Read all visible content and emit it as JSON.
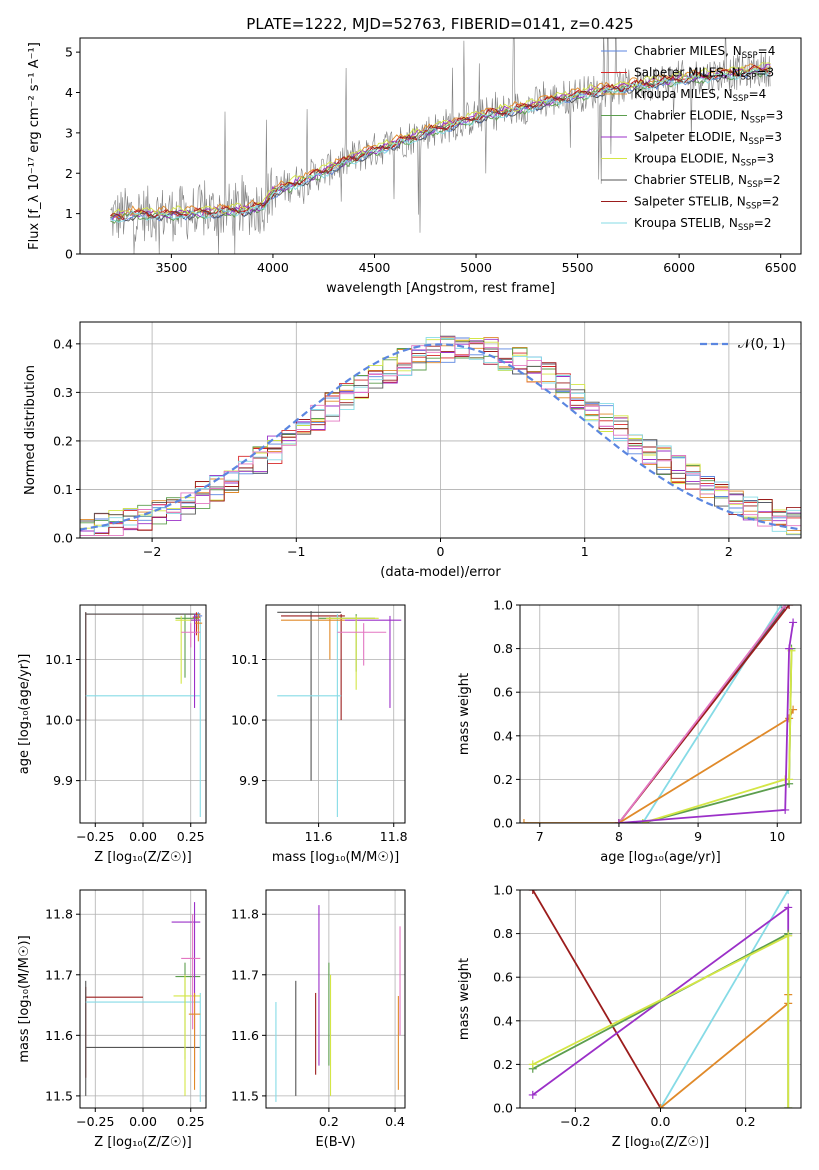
{
  "title": "PLATE=1222, MJD=52763, FIBERID=0141, z=0.425",
  "colors": {
    "chabrier_miles": "#5b86e0",
    "salpeter_miles": "#d62728",
    "kroupa_miles": "#e08a2a",
    "chabrier_elodie": "#5c9e4e",
    "salpeter_elodie": "#9b30c8",
    "kroupa_elodie": "#d4e646",
    "chabrier_stelib": "#555555",
    "salpeter_stelib": "#9b1c1c",
    "kroupa_stelib": "#86dbe6",
    "pink": "#e377c2",
    "gaussian": "#5b86e0"
  },
  "chart_data": [
    {
      "id": "spectrum",
      "type": "line",
      "xlabel": "wavelength [Angstrom, rest frame]",
      "ylabel": "Flux [f_λ 10⁻¹⁷ erg cm⁻² s⁻¹ A⁻¹]",
      "xlim": [
        3050,
        6600
      ],
      "ylim": [
        0,
        5.35
      ],
      "xticks": [
        3500,
        4000,
        4500,
        5000,
        5500,
        6000,
        6500
      ],
      "yticks": [
        0,
        1,
        2,
        3,
        4,
        5
      ],
      "legend_position": "top-right",
      "legend": [
        {
          "label": "Chabrier MILES, N",
          "sub": "SSP",
          "suffix": "=4",
          "color": "chabrier_miles"
        },
        {
          "label": "Salpeter MILES, N",
          "sub": "SSP",
          "suffix": "=3",
          "color": "salpeter_miles"
        },
        {
          "label": "Kroupa MILES, N",
          "sub": "SSP",
          "suffix": "=4",
          "color": "kroupa_miles"
        },
        {
          "label": "Chabrier ELODIE, N",
          "sub": "SSP",
          "suffix": "=3",
          "color": "chabrier_elodie"
        },
        {
          "label": "Salpeter ELODIE, N",
          "sub": "SSP",
          "suffix": "=3",
          "color": "salpeter_elodie"
        },
        {
          "label": "Kroupa ELODIE, N",
          "sub": "SSP",
          "suffix": "=3",
          "color": "kroupa_elodie"
        },
        {
          "label": "Chabrier STELIB, N",
          "sub": "SSP",
          "suffix": "=2",
          "color": "chabrier_stelib"
        },
        {
          "label": "Salpeter STELIB, N",
          "sub": "SSP",
          "suffix": "=2",
          "color": "salpeter_stelib"
        },
        {
          "label": "Kroupa STELIB, N",
          "sub": "SSP",
          "suffix": "=2",
          "color": "kroupa_stelib"
        }
      ],
      "continuum": [
        [
          3200,
          0.9
        ],
        [
          3300,
          1.0
        ],
        [
          3500,
          1.0
        ],
        [
          3700,
          1.05
        ],
        [
          3850,
          1.1
        ],
        [
          3950,
          1.2
        ],
        [
          4000,
          1.55
        ],
        [
          4200,
          1.95
        ],
        [
          4400,
          2.4
        ],
        [
          4600,
          2.75
        ],
        [
          4800,
          3.1
        ],
        [
          5000,
          3.4
        ],
        [
          5200,
          3.6
        ],
        [
          5400,
          3.85
        ],
        [
          5600,
          4.05
        ],
        [
          5800,
          4.2
        ],
        [
          6000,
          4.35
        ],
        [
          6200,
          4.45
        ],
        [
          6450,
          4.6
        ]
      ],
      "data_range": [
        3200,
        6450
      ]
    },
    {
      "id": "residuals",
      "type": "histogram",
      "xlabel": "(data-model)/error",
      "ylabel": "Normed distribution",
      "xlim": [
        -2.5,
        2.5
      ],
      "ylim": [
        0,
        0.445
      ],
      "xticks": [
        -2,
        -1,
        0,
        1,
        2
      ],
      "yticks": [
        0,
        0.1,
        0.2,
        0.3,
        0.4
      ],
      "legend": {
        "label": "𝒩(0, 1)",
        "position": "top-right"
      },
      "bin_width": 0.1,
      "n_bins": 50
    },
    {
      "id": "age_vs_Z",
      "type": "errorbar",
      "xlabel": "Z [log₁₀(Z/Z☉)]",
      "ylabel": "age  [log₁₀(age/yr)]",
      "xlim": [
        -0.33,
        0.33
      ],
      "ylim": [
        9.83,
        10.19
      ],
      "xticks": [
        -0.25,
        0.0,
        0.25
      ],
      "yticks": [
        9.9,
        10.0,
        10.1
      ],
      "points": [
        {
          "color": "salpeter_stelib",
          "x": -0.3,
          "xlo": -0.3,
          "xhi": 0.3,
          "y": 10.175,
          "ylo": 10.0,
          "yhi": 10.178
        },
        {
          "color": "chabrier_stelib",
          "x": -0.3,
          "xlo": -0.3,
          "xhi": 0.3,
          "y": 10.175,
          "ylo": 9.9,
          "yhi": 10.178
        },
        {
          "color": "kroupa_stelib",
          "x": 0.3,
          "xlo": -0.3,
          "xhi": 0.3,
          "y": 10.04,
          "ylo": 9.84,
          "yhi": 10.17
        },
        {
          "color": "salpeter_miles",
          "x": 0.28,
          "xlo": 0.26,
          "xhi": 0.3,
          "y": 10.17,
          "ylo": 10.14,
          "yhi": 10.178
        },
        {
          "color": "chabrier_miles",
          "x": 0.29,
          "xlo": 0.27,
          "xhi": 0.31,
          "y": 10.172,
          "ylo": 10.15,
          "yhi": 10.178
        },
        {
          "color": "kroupa_miles",
          "x": 0.29,
          "xlo": 0.27,
          "xhi": 0.31,
          "y": 10.16,
          "ylo": 10.13,
          "yhi": 10.175
        },
        {
          "color": "chabrier_elodie",
          "x": 0.22,
          "xlo": 0.17,
          "xhi": 0.29,
          "y": 10.168,
          "ylo": 10.07,
          "yhi": 10.175
        },
        {
          "color": "kroupa_elodie",
          "x": 0.2,
          "xlo": 0.17,
          "xhi": 0.29,
          "y": 10.165,
          "ylo": 10.06,
          "yhi": 10.172
        },
        {
          "color": "salpeter_elodie",
          "x": 0.27,
          "xlo": 0.25,
          "xhi": 0.3,
          "y": 10.165,
          "ylo": 10.02,
          "yhi": 10.175
        },
        {
          "color": "pink",
          "x": 0.25,
          "xlo": 0.2,
          "xhi": 0.3,
          "y": 10.145,
          "ylo": 10.12,
          "yhi": 10.16
        }
      ]
    },
    {
      "id": "age_vs_mass",
      "type": "errorbar",
      "xlabel": "mass [log₁₀(M/M☉)]",
      "ylabel": "",
      "xlim": [
        11.46,
        11.83
      ],
      "ylim": [
        9.83,
        10.19
      ],
      "xticks": [
        11.6,
        11.8
      ],
      "yticks": [
        9.9,
        10.0,
        10.1
      ],
      "points": [
        {
          "color": "chabrier_stelib",
          "x": 11.58,
          "xlo": 11.49,
          "xhi": 11.66,
          "y": 10.178,
          "ylo": 9.9,
          "yhi": 10.18
        },
        {
          "color": "salpeter_stelib",
          "x": 11.66,
          "xlo": 11.5,
          "xhi": 11.67,
          "y": 10.172,
          "ylo": 10.0,
          "yhi": 10.175
        },
        {
          "color": "kroupa_stelib",
          "x": 11.65,
          "xlo": 11.49,
          "xhi": 11.66,
          "y": 10.04,
          "ylo": 9.84,
          "yhi": 10.175
        },
        {
          "color": "kroupa_miles",
          "x": 11.63,
          "xlo": 11.5,
          "xhi": 11.67,
          "y": 10.165,
          "ylo": 10.1,
          "yhi": 10.17
        },
        {
          "color": "chabrier_elodie",
          "x": 11.7,
          "xlo": 11.6,
          "xhi": 11.75,
          "y": 10.168,
          "ylo": 10.08,
          "yhi": 10.175
        },
        {
          "color": "salpeter_elodie",
          "x": 11.79,
          "xlo": 11.67,
          "xhi": 11.82,
          "y": 10.165,
          "ylo": 10.02,
          "yhi": 10.172
        },
        {
          "color": "kroupa_elodie",
          "x": 11.7,
          "xlo": 11.62,
          "xhi": 11.76,
          "y": 10.168,
          "ylo": 10.05,
          "yhi": 10.172
        },
        {
          "color": "pink",
          "x": 11.72,
          "xlo": 11.65,
          "xhi": 11.78,
          "y": 10.145,
          "ylo": 10.09,
          "yhi": 10.16
        }
      ]
    },
    {
      "id": "massweight_vs_age",
      "type": "line",
      "xlabel": "age  [log₁₀(age/yr)]",
      "ylabel": "mass weight",
      "xlim": [
        6.75,
        10.3
      ],
      "ylim": [
        0,
        1.0
      ],
      "xticks": [
        7,
        8,
        9,
        10
      ],
      "yticks": [
        0.0,
        0.2,
        0.4,
        0.6,
        0.8,
        1.0
      ],
      "grid": true,
      "series": [
        {
          "color": "kroupa_stelib",
          "x": [
            8.3,
            10.05
          ],
          "y": [
            0.0,
            1.0
          ]
        },
        {
          "color": "chabrier_stelib",
          "x": [
            8.0,
            10.1
          ],
          "y": [
            0.0,
            0.99
          ]
        },
        {
          "color": "salpeter_stelib",
          "x": [
            8.0,
            10.15
          ],
          "y": [
            0.0,
            1.0
          ]
        },
        {
          "color": "pink",
          "x": [
            8.0,
            10.1
          ],
          "y": [
            0.0,
            1.0
          ]
        },
        {
          "color": "kroupa_miles",
          "x": [
            6.8,
            8.0,
            10.15,
            10.2
          ],
          "y": [
            0.0,
            0.0,
            0.48,
            0.52
          ]
        },
        {
          "color": "chabrier_elodie",
          "x": [
            8.3,
            10.15,
            10.18
          ],
          "y": [
            0.0,
            0.18,
            0.8
          ]
        },
        {
          "color": "kroupa_elodie",
          "x": [
            8.3,
            10.1,
            10.15,
            10.18
          ],
          "y": [
            0.0,
            0.2,
            0.2,
            0.79
          ]
        },
        {
          "color": "salpeter_elodie",
          "x": [
            8.0,
            10.1,
            10.15,
            10.2
          ],
          "y": [
            0.0,
            0.06,
            0.8,
            0.92
          ]
        }
      ]
    },
    {
      "id": "mass_vs_Z",
      "type": "errorbar",
      "xlabel": "Z [log₁₀(Z/Z☉)]",
      "ylabel": "mass [log₁₀(M/M☉)]",
      "xlim": [
        -0.33,
        0.33
      ],
      "ylim": [
        11.48,
        11.84
      ],
      "xticks": [
        -0.25,
        0.0,
        0.25
      ],
      "yticks": [
        11.5,
        11.6,
        11.7,
        11.8
      ],
      "points": [
        {
          "color": "salpeter_stelib",
          "x": -0.3,
          "xlo": -0.3,
          "xhi": 0.0,
          "y": 11.663,
          "ylo": 11.53,
          "yhi": 11.68
        },
        {
          "color": "chabrier_stelib",
          "x": -0.3,
          "xlo": -0.3,
          "xhi": 0.3,
          "y": 11.58,
          "ylo": 11.5,
          "yhi": 11.69
        },
        {
          "color": "kroupa_stelib",
          "x": 0.3,
          "xlo": -0.3,
          "xhi": 0.3,
          "y": 11.655,
          "ylo": 11.49,
          "yhi": 11.67
        },
        {
          "color": "chabrier_elodie",
          "x": 0.22,
          "xlo": 0.17,
          "xhi": 0.3,
          "y": 11.697,
          "ylo": 11.56,
          "yhi": 11.72
        },
        {
          "color": "kroupa_elodie",
          "x": 0.22,
          "xlo": 0.16,
          "xhi": 0.3,
          "y": 11.665,
          "ylo": 11.5,
          "yhi": 11.7
        },
        {
          "color": "salpeter_elodie",
          "x": 0.27,
          "xlo": 0.15,
          "xhi": 0.3,
          "y": 11.787,
          "ylo": 11.54,
          "yhi": 11.82
        },
        {
          "color": "pink",
          "x": 0.26,
          "xlo": 0.2,
          "xhi": 0.3,
          "y": 11.727,
          "ylo": 11.61,
          "yhi": 11.8
        },
        {
          "color": "kroupa_miles",
          "x": 0.27,
          "xlo": 0.24,
          "xhi": 0.3,
          "y": 11.635,
          "ylo": 11.51,
          "yhi": 11.67
        }
      ]
    },
    {
      "id": "mass_vs_ebv",
      "type": "errorbar",
      "xlabel": "E(B-V)",
      "ylabel": "",
      "xlim": [
        0.01,
        0.43
      ],
      "ylim": [
        11.48,
        11.84
      ],
      "xticks": [
        0.2,
        0.4
      ],
      "yticks": [
        11.5,
        11.6,
        11.7,
        11.8
      ],
      "points": [
        {
          "color": "kroupa_stelib",
          "x": 0.04,
          "ylo": 11.49,
          "yhi": 11.655
        },
        {
          "color": "chabrier_stelib",
          "x": 0.1,
          "ylo": 11.5,
          "yhi": 11.69
        },
        {
          "color": "salpeter_stelib",
          "x": 0.16,
          "ylo": 11.535,
          "yhi": 11.67
        },
        {
          "color": "salpeter_elodie",
          "x": 0.17,
          "ylo": 11.55,
          "yhi": 11.815
        },
        {
          "color": "chabrier_elodie",
          "x": 0.2,
          "ylo": 11.55,
          "yhi": 11.72
        },
        {
          "color": "kroupa_elodie",
          "x": 0.205,
          "ylo": 11.5,
          "yhi": 11.7
        },
        {
          "color": "kroupa_miles",
          "x": 0.41,
          "ylo": 11.51,
          "yhi": 11.665
        },
        {
          "color": "pink",
          "x": 0.415,
          "ylo": 11.6,
          "yhi": 11.78
        }
      ]
    },
    {
      "id": "massweight_vs_Z",
      "type": "line",
      "xlabel": "Z [log₁₀(Z/Z☉)]",
      "ylabel": "mass weight",
      "xlim": [
        -0.33,
        0.33
      ],
      "ylim": [
        0,
        1.0
      ],
      "xticks": [
        -0.2,
        0.0,
        0.2
      ],
      "yticks": [
        0.0,
        0.2,
        0.4,
        0.6,
        0.8,
        1.0
      ],
      "grid": true,
      "series": [
        {
          "color": "salpeter_stelib",
          "x": [
            -0.3,
            0.0
          ],
          "y": [
            1.0,
            0.0
          ]
        },
        {
          "color": "kroupa_stelib",
          "x": [
            0.0,
            0.3
          ],
          "y": [
            0.0,
            1.0
          ]
        },
        {
          "color": "kroupa_miles",
          "x": [
            0.0,
            0.3,
            0.3
          ],
          "y": [
            0.0,
            0.48,
            0.52
          ]
        },
        {
          "color": "salpeter_elodie",
          "x": [
            -0.3,
            0.3,
            0.3
          ],
          "y": [
            0.06,
            0.92,
            0.8
          ]
        },
        {
          "color": "chabrier_elodie",
          "x": [
            -0.3,
            0.3,
            0.3
          ],
          "y": [
            0.18,
            0.8,
            0.0
          ]
        },
        {
          "color": "kroupa_elodie",
          "x": [
            -0.3,
            0.3,
            0.3
          ],
          "y": [
            0.2,
            0.79,
            0.0
          ]
        }
      ]
    }
  ]
}
